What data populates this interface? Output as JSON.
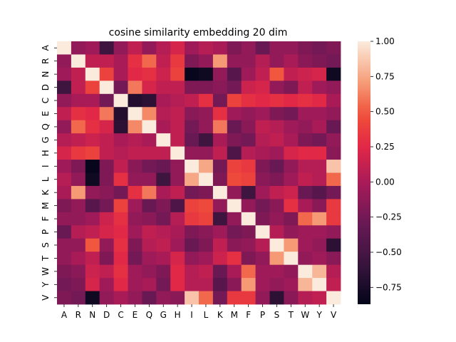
{
  "chart_data": {
    "type": "heatmap",
    "title": "cosine similarity embedding 20 dim",
    "xlabel": "",
    "ylabel": "",
    "labels": [
      "A",
      "R",
      "N",
      "D",
      "C",
      "E",
      "Q",
      "G",
      "H",
      "I",
      "L",
      "K",
      "M",
      "F",
      "P",
      "S",
      "T",
      "W",
      "Y",
      "V"
    ],
    "colormap": "rocket",
    "vmin": -0.87,
    "vmax": 1.0,
    "colorbar_ticks": [
      1.0,
      0.75,
      0.5,
      0.25,
      0.0,
      -0.25,
      -0.5,
      -0.75
    ],
    "colorbar_tick_labels": [
      "1.00",
      "0.75",
      "0.50",
      "0.25",
      "0.00",
      "−0.25",
      "−0.50",
      "−0.75"
    ],
    "matrix": [
      [
        1.0,
        -0.1,
        -0.05,
        -0.55,
        -0.1,
        0.1,
        -0.1,
        0.05,
        0.2,
        -0.05,
        0.05,
        0.0,
        -0.2,
        -0.1,
        -0.3,
        -0.1,
        -0.1,
        -0.2,
        -0.25,
        -0.2
      ],
      [
        -0.1,
        1.0,
        0.1,
        0.1,
        0.0,
        0.3,
        0.55,
        0.1,
        0.35,
        -0.2,
        -0.1,
        0.7,
        -0.1,
        -0.1,
        0.05,
        -0.1,
        0.0,
        -0.15,
        -0.2,
        -0.25
      ],
      [
        -0.05,
        0.1,
        1.0,
        0.4,
        0.0,
        0.25,
        0.3,
        0.15,
        0.4,
        -0.85,
        -0.8,
        -0.1,
        -0.4,
        -0.05,
        0.1,
        0.5,
        0.1,
        0.15,
        0.2,
        -0.8
      ],
      [
        -0.55,
        0.1,
        0.4,
        1.0,
        -0.25,
        0.6,
        0.2,
        0.1,
        0.1,
        -0.2,
        -0.2,
        -0.15,
        -0.25,
        0.15,
        0.2,
        -0.1,
        -0.2,
        0.1,
        -0.05,
        -0.1
      ],
      [
        -0.1,
        0.0,
        0.0,
        -0.25,
        1.0,
        -0.7,
        -0.65,
        0.0,
        0.05,
        0.1,
        0.3,
        -0.25,
        0.4,
        0.3,
        0.25,
        0.3,
        0.25,
        0.3,
        0.25,
        0.0
      ],
      [
        0.1,
        0.3,
        0.25,
        0.6,
        -0.7,
        1.0,
        0.65,
        0.05,
        0.1,
        -0.15,
        -0.1,
        0.3,
        -0.05,
        -0.1,
        -0.05,
        -0.2,
        -0.25,
        -0.05,
        -0.05,
        -0.1
      ],
      [
        -0.1,
        0.55,
        0.3,
        0.2,
        -0.65,
        0.65,
        1.0,
        0.0,
        0.1,
        -0.25,
        -0.1,
        0.6,
        -0.3,
        -0.15,
        0.1,
        0.05,
        -0.05,
        -0.1,
        0.0,
        -0.3
      ],
      [
        0.05,
        0.1,
        0.15,
        0.1,
        0.0,
        0.05,
        0.0,
        1.0,
        0.1,
        -0.3,
        -0.55,
        0.0,
        -0.2,
        -0.25,
        0.05,
        0.1,
        0.0,
        -0.2,
        -0.25,
        -0.1
      ],
      [
        0.2,
        0.35,
        0.4,
        0.1,
        0.05,
        0.1,
        0.1,
        0.1,
        1.0,
        -0.1,
        -0.1,
        0.1,
        -0.45,
        0.05,
        0.0,
        -0.05,
        0.2,
        0.25,
        0.25,
        -0.15
      ],
      [
        -0.05,
        -0.2,
        -0.85,
        -0.2,
        0.1,
        -0.15,
        -0.25,
        -0.3,
        -0.1,
        1.0,
        0.75,
        -0.25,
        0.4,
        0.35,
        -0.2,
        -0.3,
        -0.1,
        0.05,
        0.05,
        0.85
      ],
      [
        0.05,
        -0.1,
        -0.8,
        -0.2,
        0.3,
        -0.1,
        -0.1,
        -0.55,
        -0.1,
        0.75,
        1.0,
        -0.2,
        0.45,
        0.4,
        -0.15,
        -0.2,
        -0.05,
        0.1,
        0.05,
        0.55
      ],
      [
        0.0,
        0.7,
        -0.1,
        -0.15,
        -0.25,
        0.3,
        0.6,
        0.0,
        0.1,
        -0.25,
        -0.2,
        1.0,
        -0.1,
        -0.55,
        -0.05,
        0.1,
        0.15,
        -0.3,
        -0.4,
        -0.25
      ],
      [
        -0.2,
        -0.1,
        -0.4,
        -0.25,
        0.4,
        -0.05,
        -0.3,
        -0.2,
        -0.45,
        0.4,
        0.45,
        -0.1,
        1.0,
        -0.1,
        -0.25,
        -0.15,
        0.3,
        0.0,
        -0.15,
        0.35
      ],
      [
        -0.1,
        -0.1,
        -0.05,
        0.15,
        0.3,
        -0.1,
        -0.15,
        -0.25,
        0.05,
        0.35,
        0.4,
        -0.55,
        -0.1,
        1.0,
        -0.2,
        -0.1,
        -0.2,
        0.55,
        0.7,
        0.35
      ],
      [
        -0.3,
        0.05,
        0.1,
        0.2,
        0.25,
        -0.05,
        0.1,
        0.05,
        0.0,
        -0.2,
        -0.15,
        -0.05,
        -0.25,
        -0.2,
        1.0,
        0.05,
        -0.1,
        -0.05,
        -0.05,
        -0.1
      ],
      [
        -0.1,
        -0.1,
        0.5,
        -0.1,
        0.3,
        -0.2,
        0.05,
        0.1,
        -0.05,
        -0.3,
        -0.2,
        0.1,
        -0.15,
        -0.1,
        0.05,
        1.0,
        0.7,
        -0.05,
        -0.1,
        -0.65
      ],
      [
        -0.1,
        0.0,
        0.1,
        -0.2,
        0.25,
        -0.25,
        -0.05,
        0.0,
        0.2,
        -0.1,
        -0.05,
        0.15,
        0.3,
        -0.2,
        -0.1,
        0.7,
        1.0,
        -0.1,
        -0.05,
        -0.15
      ],
      [
        -0.2,
        -0.15,
        0.15,
        0.1,
        0.3,
        -0.05,
        -0.1,
        -0.2,
        0.25,
        0.05,
        0.1,
        -0.3,
        0.0,
        0.55,
        -0.05,
        -0.05,
        -0.1,
        1.0,
        0.8,
        0.05
      ],
      [
        -0.25,
        -0.2,
        0.2,
        -0.05,
        0.25,
        -0.05,
        0.0,
        -0.25,
        0.25,
        0.05,
        0.05,
        -0.4,
        -0.15,
        0.7,
        -0.05,
        -0.1,
        -0.05,
        0.8,
        1.0,
        0.1
      ],
      [
        -0.2,
        -0.25,
        -0.8,
        -0.1,
        0.0,
        -0.1,
        -0.3,
        -0.1,
        -0.15,
        0.85,
        0.55,
        -0.25,
        0.35,
        0.35,
        -0.1,
        -0.65,
        -0.15,
        0.05,
        0.1,
        1.0
      ]
    ]
  }
}
